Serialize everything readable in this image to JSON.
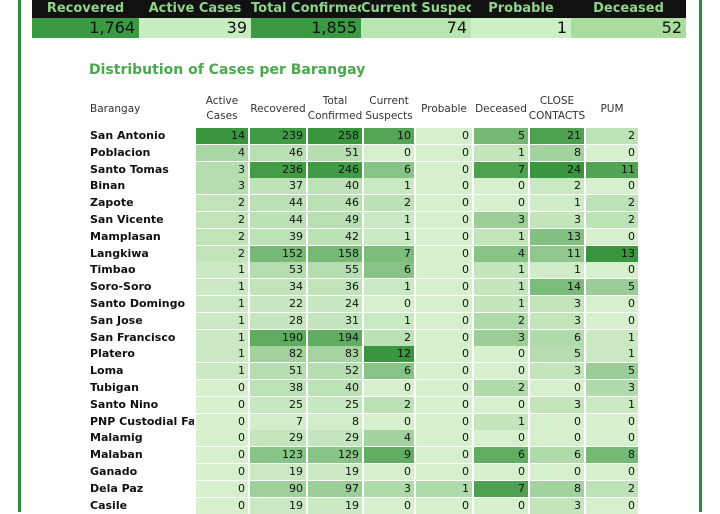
{
  "summary": [
    {
      "label": "Recovered",
      "value": "1,764",
      "bg": "#3a9a43"
    },
    {
      "label": "Active Cases",
      "value": "39",
      "bg": "#c7ecbf"
    },
    {
      "label": "Total Confirmed",
      "value": "1,855",
      "bg": "#3a9a43"
    },
    {
      "label": "Current Suspects",
      "value": "74",
      "bg": "#b9e6b0"
    },
    {
      "label": "Probable",
      "value": "1",
      "bg": "#cdefc6"
    },
    {
      "label": "Deceased",
      "value": "52",
      "bg": "#a8dd9e"
    }
  ],
  "title": "Distribution of Cases per Barangay",
  "headers": [
    "Barangay",
    "Active Cases",
    "Recovered",
    "Total Confirmed",
    "Current Suspects",
    "Probable",
    "Deceased",
    "CLOSE CONTACTS",
    "PUM"
  ],
  "rows": [
    {
      "name": "San Antonio",
      "v": [
        14,
        239,
        258,
        10,
        0,
        5,
        21,
        2
      ]
    },
    {
      "name": "Poblacion",
      "v": [
        4,
        46,
        51,
        0,
        0,
        1,
        8,
        0
      ]
    },
    {
      "name": "Santo Tomas",
      "v": [
        3,
        236,
        246,
        6,
        0,
        7,
        24,
        11
      ]
    },
    {
      "name": "Binan",
      "v": [
        3,
        37,
        40,
        1,
        0,
        0,
        2,
        0
      ]
    },
    {
      "name": "Zapote",
      "v": [
        2,
        44,
        46,
        2,
        0,
        0,
        1,
        2
      ]
    },
    {
      "name": "San Vicente",
      "v": [
        2,
        44,
        49,
        1,
        0,
        3,
        3,
        2
      ]
    },
    {
      "name": "Mamplasan",
      "v": [
        2,
        39,
        42,
        1,
        0,
        1,
        13,
        0
      ]
    },
    {
      "name": "Langkiwa",
      "v": [
        2,
        152,
        158,
        7,
        0,
        4,
        11,
        13
      ]
    },
    {
      "name": "Timbao",
      "v": [
        1,
        53,
        55,
        6,
        0,
        1,
        1,
        0
      ]
    },
    {
      "name": "Soro-Soro",
      "v": [
        1,
        34,
        36,
        1,
        0,
        1,
        14,
        5
      ]
    },
    {
      "name": "Santo Domingo",
      "v": [
        1,
        22,
        24,
        0,
        0,
        1,
        3,
        0
      ]
    },
    {
      "name": "San Jose",
      "v": [
        1,
        28,
        31,
        1,
        0,
        2,
        3,
        0
      ]
    },
    {
      "name": "San Francisco",
      "v": [
        1,
        190,
        194,
        2,
        0,
        3,
        6,
        1
      ]
    },
    {
      "name": "Platero",
      "v": [
        1,
        82,
        83,
        12,
        0,
        0,
        5,
        1
      ]
    },
    {
      "name": "Loma",
      "v": [
        1,
        51,
        52,
        6,
        0,
        0,
        3,
        5
      ]
    },
    {
      "name": "Tubigan",
      "v": [
        0,
        38,
        40,
        0,
        0,
        2,
        0,
        3
      ]
    },
    {
      "name": "Santo Nino",
      "v": [
        0,
        25,
        25,
        2,
        0,
        0,
        3,
        1
      ]
    },
    {
      "name": "PNP Custodial Fac..",
      "v": [
        0,
        7,
        8,
        0,
        0,
        1,
        0,
        0
      ]
    },
    {
      "name": "Malamig",
      "v": [
        0,
        29,
        29,
        4,
        0,
        0,
        0,
        0
      ]
    },
    {
      "name": "Malaban",
      "v": [
        0,
        123,
        129,
        9,
        0,
        6,
        6,
        8
      ]
    },
    {
      "name": "Ganado",
      "v": [
        0,
        19,
        19,
        0,
        0,
        0,
        0,
        0
      ]
    },
    {
      "name": "Dela Paz",
      "v": [
        0,
        90,
        97,
        3,
        1,
        7,
        8,
        2
      ]
    },
    {
      "name": "Casile",
      "v": [
        0,
        19,
        19,
        0,
        0,
        0,
        3,
        0
      ]
    }
  ]
}
